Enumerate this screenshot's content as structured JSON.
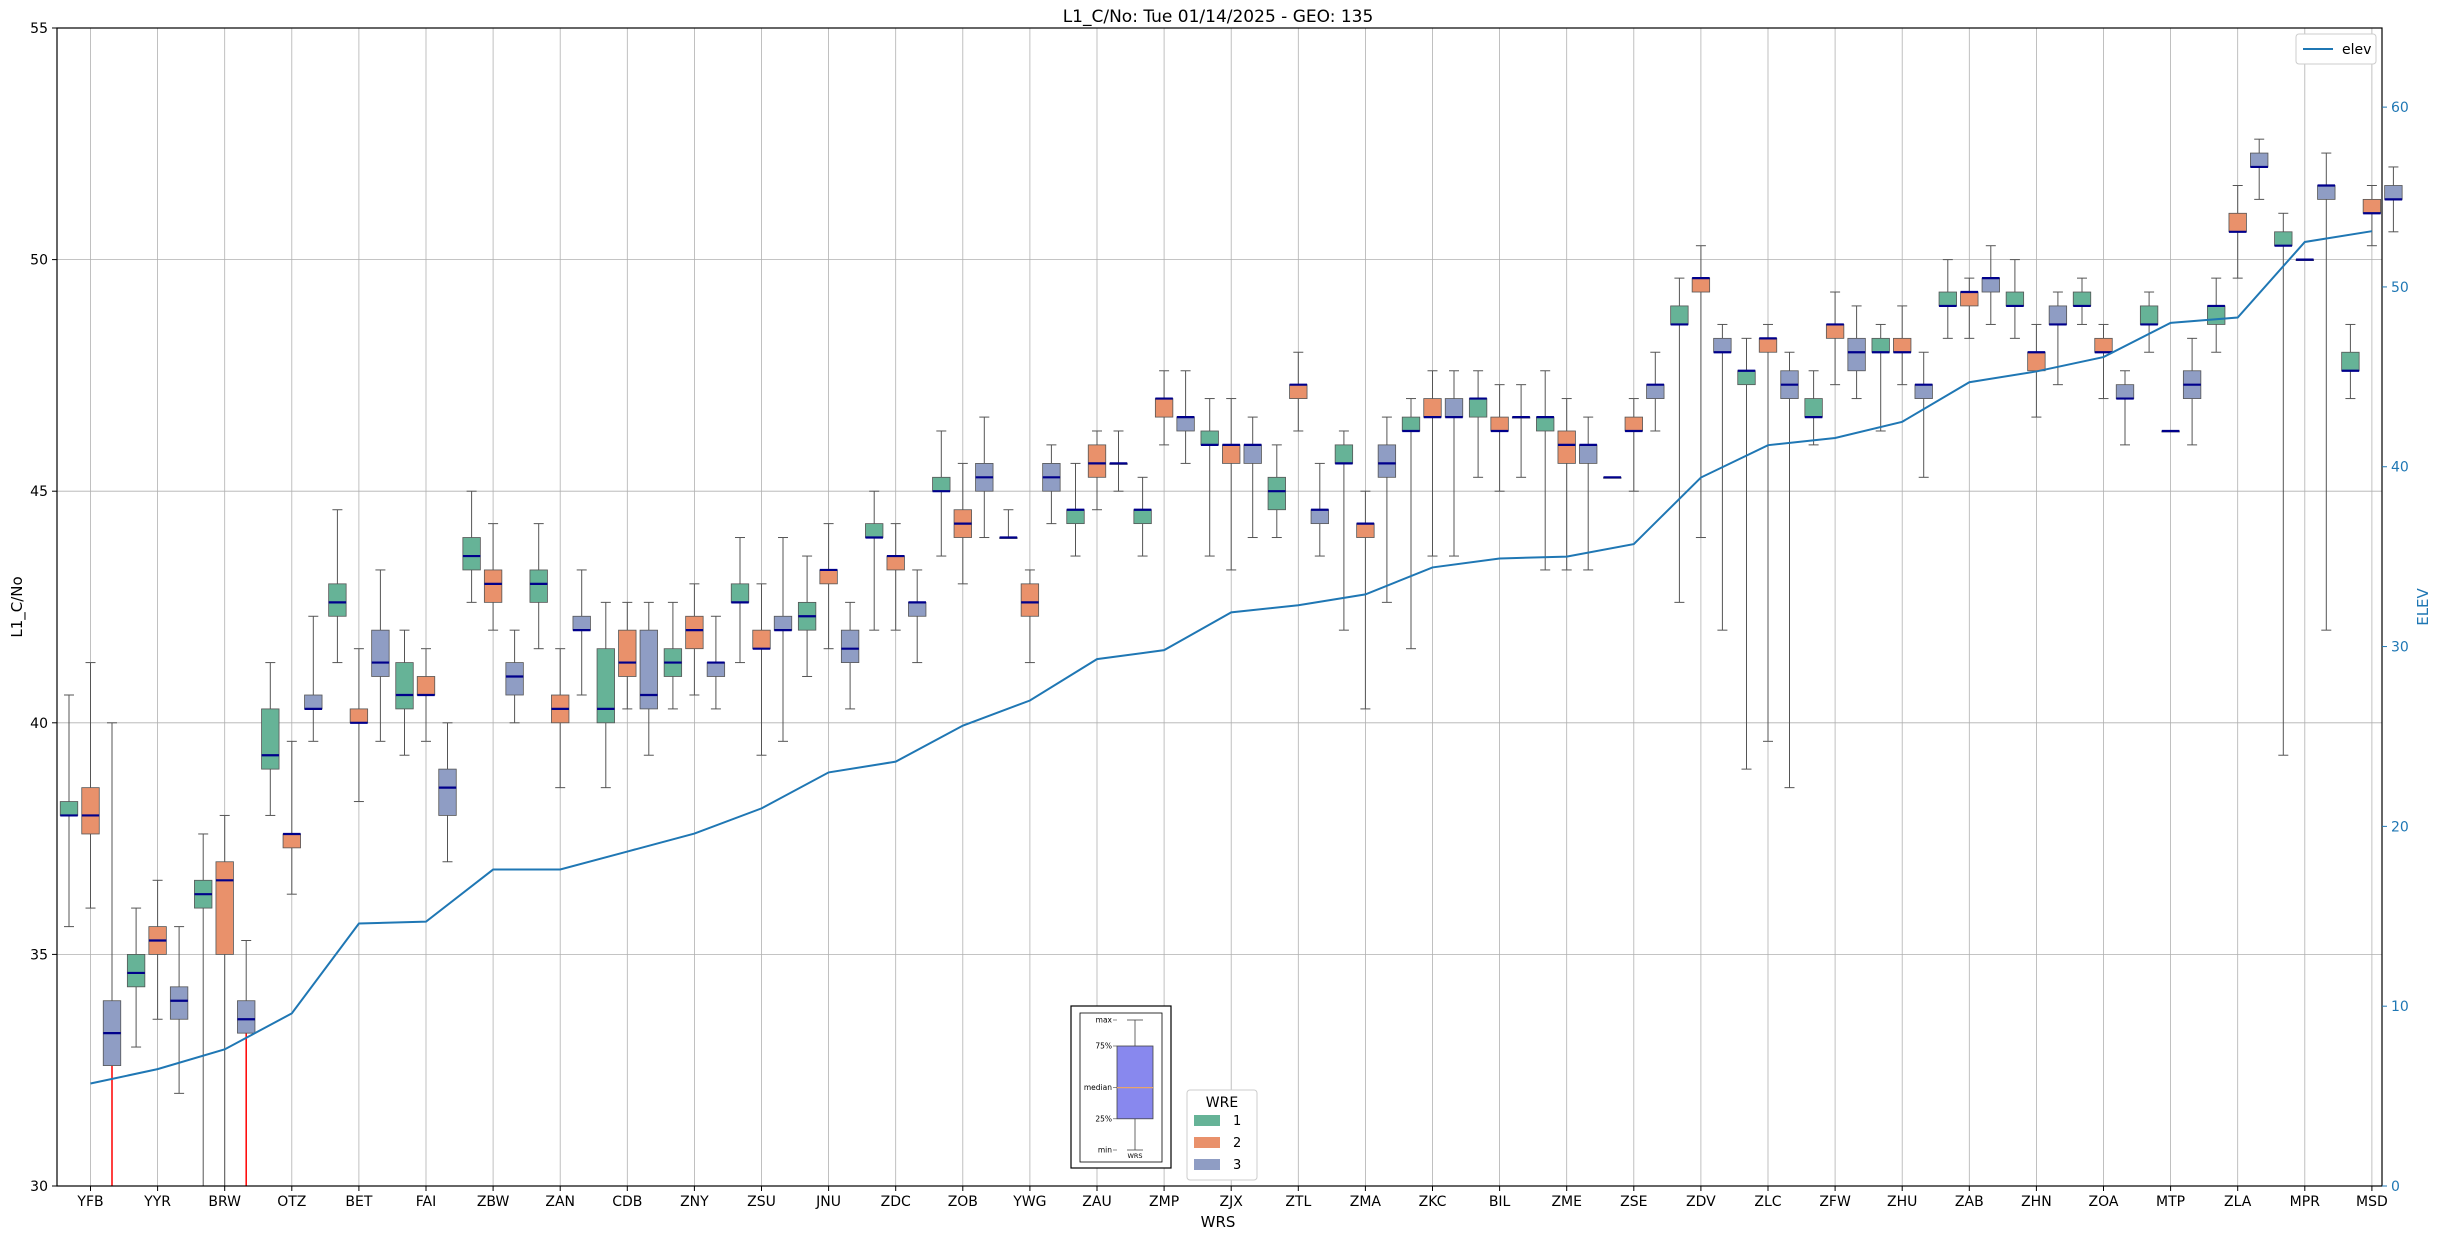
{
  "chart_data": {
    "type": "box",
    "title": "L1_C/No: Tue 01/14/2025 - GEO: 135",
    "xlabel": "WRS",
    "ylabel": "L1_C/No",
    "y2label": "ELEV",
    "ylim": [
      30,
      55
    ],
    "y2lim": [
      0,
      64.4
    ],
    "yticks": [
      30,
      35,
      40,
      45,
      50,
      55
    ],
    "y2ticks": [
      0,
      10,
      20,
      30,
      40,
      50,
      60
    ],
    "grid": true,
    "categories": [
      "YFB",
      "YYR",
      "BRW",
      "OTZ",
      "BET",
      "FAI",
      "ZBW",
      "ZAN",
      "CDB",
      "ZNY",
      "ZSU",
      "JNU",
      "ZDC",
      "ZOB",
      "YWG",
      "ZAU",
      "ZMP",
      "ZJX",
      "ZTL",
      "ZMA",
      "ZKC",
      "BIL",
      "ZME",
      "ZSE",
      "ZDV",
      "ZLC",
      "ZFW",
      "ZHU",
      "ZAB",
      "ZHN",
      "ZOA",
      "MTP",
      "ZLA",
      "MPR",
      "MSD"
    ],
    "legend": {
      "title": "WRE",
      "placement": "bottom-center",
      "entries": [
        "1",
        "2",
        "3"
      ]
    },
    "colors": {
      "wre1": "#66b397",
      "wre2": "#e9916b",
      "wre3": "#8f9dc4",
      "median": "#00008b",
      "whisker": "#555555",
      "elev": "#1f77b4",
      "outlier": "#ff0000"
    },
    "elev_series": {
      "name": "elev",
      "values": [
        5.7,
        6.5,
        7.6,
        9.6,
        14.6,
        14.7,
        17.6,
        17.6,
        18.6,
        19.6,
        21.0,
        23.0,
        23.6,
        25.6,
        27.0,
        29.3,
        29.8,
        31.9,
        32.3,
        32.9,
        34.4,
        34.9,
        35.0,
        35.7,
        39.4,
        41.2,
        41.6,
        42.5,
        44.7,
        45.3,
        46.1,
        48.0,
        48.3,
        52.5,
        53.1
      ]
    },
    "boxes": [
      {
        "cat": "YFB",
        "wre": 1,
        "min": 35.6,
        "q1": 38.0,
        "med": 38.0,
        "q3": 38.3,
        "max": 40.6
      },
      {
        "cat": "YFB",
        "wre": 2,
        "min": 36.0,
        "q1": 37.6,
        "med": 38.0,
        "q3": 38.6,
        "max": 41.3
      },
      {
        "cat": "YFB",
        "wre": 3,
        "min": 30.0,
        "q1": 32.6,
        "med": 33.3,
        "q3": 34.0,
        "max": 40.0,
        "outlier": true
      },
      {
        "cat": "YYR",
        "wre": 1,
        "min": 33.0,
        "q1": 34.3,
        "med": 34.6,
        "q3": 35.0,
        "max": 36.0
      },
      {
        "cat": "YYR",
        "wre": 2,
        "min": 33.6,
        "q1": 35.0,
        "med": 35.3,
        "q3": 35.6,
        "max": 36.6
      },
      {
        "cat": "YYR",
        "wre": 3,
        "min": 32.0,
        "q1": 33.6,
        "med": 34.0,
        "q3": 34.3,
        "max": 35.6
      },
      {
        "cat": "BRW",
        "wre": 1,
        "min": 30.0,
        "q1": 36.0,
        "med": 36.3,
        "q3": 36.6,
        "max": 37.6
      },
      {
        "cat": "BRW",
        "wre": 2,
        "min": 30.0,
        "q1": 35.0,
        "med": 36.6,
        "q3": 37.0,
        "max": 38.0
      },
      {
        "cat": "BRW",
        "wre": 3,
        "min": 30.0,
        "q1": 33.3,
        "med": 33.6,
        "q3": 34.0,
        "max": 35.3,
        "outlier": true
      },
      {
        "cat": "OTZ",
        "wre": 1,
        "min": 38.0,
        "q1": 39.0,
        "med": 39.3,
        "q3": 40.3,
        "max": 41.3
      },
      {
        "cat": "OTZ",
        "wre": 2,
        "min": 36.3,
        "q1": 37.3,
        "med": 37.6,
        "q3": 37.6,
        "max": 39.6
      },
      {
        "cat": "OTZ",
        "wre": 3,
        "min": 39.6,
        "q1": 40.3,
        "med": 40.3,
        "q3": 40.6,
        "max": 42.3
      },
      {
        "cat": "BET",
        "wre": 1,
        "min": 41.3,
        "q1": 42.3,
        "med": 42.6,
        "q3": 43.0,
        "max": 44.6
      },
      {
        "cat": "BET",
        "wre": 2,
        "min": 38.3,
        "q1": 40.0,
        "med": 40.0,
        "q3": 40.3,
        "max": 41.6
      },
      {
        "cat": "BET",
        "wre": 3,
        "min": 39.6,
        "q1": 41.0,
        "med": 41.3,
        "q3": 42.0,
        "max": 43.3
      },
      {
        "cat": "FAI",
        "wre": 1,
        "min": 39.3,
        "q1": 40.3,
        "med": 40.6,
        "q3": 41.3,
        "max": 42.0
      },
      {
        "cat": "FAI",
        "wre": 2,
        "min": 39.6,
        "q1": 40.6,
        "med": 40.6,
        "q3": 41.0,
        "max": 41.6
      },
      {
        "cat": "FAI",
        "wre": 3,
        "min": 37.0,
        "q1": 38.0,
        "med": 38.6,
        "q3": 39.0,
        "max": 40.0
      },
      {
        "cat": "ZBW",
        "wre": 1,
        "min": 42.6,
        "q1": 43.3,
        "med": 43.6,
        "q3": 44.0,
        "max": 45.0
      },
      {
        "cat": "ZBW",
        "wre": 2,
        "min": 42.0,
        "q1": 42.6,
        "med": 43.0,
        "q3": 43.3,
        "max": 44.3
      },
      {
        "cat": "ZBW",
        "wre": 3,
        "min": 40.0,
        "q1": 40.6,
        "med": 41.0,
        "q3": 41.3,
        "max": 42.0
      },
      {
        "cat": "ZAN",
        "wre": 1,
        "min": 41.6,
        "q1": 42.6,
        "med": 43.0,
        "q3": 43.3,
        "max": 44.3
      },
      {
        "cat": "ZAN",
        "wre": 2,
        "min": 38.6,
        "q1": 40.0,
        "med": 40.3,
        "q3": 40.6,
        "max": 41.6
      },
      {
        "cat": "ZAN",
        "wre": 3,
        "min": 40.6,
        "q1": 42.0,
        "med": 42.0,
        "q3": 42.3,
        "max": 43.3
      },
      {
        "cat": "CDB",
        "wre": 1,
        "min": 38.6,
        "q1": 40.0,
        "med": 40.3,
        "q3": 41.6,
        "max": 42.6
      },
      {
        "cat": "CDB",
        "wre": 2,
        "min": 40.3,
        "q1": 41.0,
        "med": 41.3,
        "q3": 42.0,
        "max": 42.6
      },
      {
        "cat": "CDB",
        "wre": 3,
        "min": 39.3,
        "q1": 40.3,
        "med": 40.6,
        "q3": 42.0,
        "max": 42.6
      },
      {
        "cat": "ZNY",
        "wre": 1,
        "min": 40.3,
        "q1": 41.0,
        "med": 41.3,
        "q3": 41.6,
        "max": 42.6
      },
      {
        "cat": "ZNY",
        "wre": 2,
        "min": 40.6,
        "q1": 41.6,
        "med": 42.0,
        "q3": 42.3,
        "max": 43.0
      },
      {
        "cat": "ZNY",
        "wre": 3,
        "min": 40.3,
        "q1": 41.0,
        "med": 41.3,
        "q3": 41.3,
        "max": 42.3
      },
      {
        "cat": "ZSU",
        "wre": 1,
        "min": 41.3,
        "q1": 42.6,
        "med": 42.6,
        "q3": 43.0,
        "max": 44.0
      },
      {
        "cat": "ZSU",
        "wre": 2,
        "min": 39.3,
        "q1": 41.6,
        "med": 41.6,
        "q3": 42.0,
        "max": 43.0
      },
      {
        "cat": "ZSU",
        "wre": 3,
        "min": 39.6,
        "q1": 42.0,
        "med": 42.0,
        "q3": 42.3,
        "max": 44.0
      },
      {
        "cat": "JNU",
        "wre": 1,
        "min": 41.0,
        "q1": 42.0,
        "med": 42.3,
        "q3": 42.6,
        "max": 43.6
      },
      {
        "cat": "JNU",
        "wre": 2,
        "min": 41.6,
        "q1": 43.0,
        "med": 43.3,
        "q3": 43.3,
        "max": 44.3
      },
      {
        "cat": "JNU",
        "wre": 3,
        "min": 40.3,
        "q1": 41.3,
        "med": 41.6,
        "q3": 42.0,
        "max": 42.6
      },
      {
        "cat": "ZDC",
        "wre": 1,
        "min": 42.0,
        "q1": 44.0,
        "med": 44.0,
        "q3": 44.3,
        "max": 45.0
      },
      {
        "cat": "ZDC",
        "wre": 2,
        "min": 42.0,
        "q1": 43.3,
        "med": 43.6,
        "q3": 43.6,
        "max": 44.3
      },
      {
        "cat": "ZDC",
        "wre": 3,
        "min": 41.3,
        "q1": 42.3,
        "med": 42.6,
        "q3": 42.6,
        "max": 43.3
      },
      {
        "cat": "ZOB",
        "wre": 1,
        "min": 43.6,
        "q1": 45.0,
        "med": 45.0,
        "q3": 45.3,
        "max": 46.3
      },
      {
        "cat": "ZOB",
        "wre": 2,
        "min": 43.0,
        "q1": 44.0,
        "med": 44.3,
        "q3": 44.6,
        "max": 45.6
      },
      {
        "cat": "ZOB",
        "wre": 3,
        "min": 44.0,
        "q1": 45.0,
        "med": 45.3,
        "q3": 45.6,
        "max": 46.6
      },
      {
        "cat": "YWG",
        "wre": 1,
        "min": 44.0,
        "q1": 44.0,
        "med": 44.0,
        "q3": 44.0,
        "max": 44.6
      },
      {
        "cat": "YWG",
        "wre": 2,
        "min": 41.3,
        "q1": 42.3,
        "med": 42.6,
        "q3": 43.0,
        "max": 43.3
      },
      {
        "cat": "YWG",
        "wre": 3,
        "min": 44.3,
        "q1": 45.0,
        "med": 45.3,
        "q3": 45.6,
        "max": 46.0
      },
      {
        "cat": "ZAU",
        "wre": 1,
        "min": 43.6,
        "q1": 44.3,
        "med": 44.6,
        "q3": 44.6,
        "max": 45.6
      },
      {
        "cat": "ZAU",
        "wre": 2,
        "min": 44.6,
        "q1": 45.3,
        "med": 45.6,
        "q3": 46.0,
        "max": 46.3
      },
      {
        "cat": "ZAU",
        "wre": 3,
        "min": 45.0,
        "q1": 45.6,
        "med": 45.6,
        "q3": 45.6,
        "max": 46.3
      },
      {
        "cat": "ZMP",
        "wre": 1,
        "min": 43.6,
        "q1": 44.3,
        "med": 44.6,
        "q3": 44.6,
        "max": 45.3
      },
      {
        "cat": "ZMP",
        "wre": 2,
        "min": 46.0,
        "q1": 46.6,
        "med": 47.0,
        "q3": 47.0,
        "max": 47.6
      },
      {
        "cat": "ZMP",
        "wre": 3,
        "min": 45.6,
        "q1": 46.3,
        "med": 46.6,
        "q3": 46.6,
        "max": 47.6
      },
      {
        "cat": "ZJX",
        "wre": 1,
        "min": 43.6,
        "q1": 46.0,
        "med": 46.0,
        "q3": 46.3,
        "max": 47.0
      },
      {
        "cat": "ZJX",
        "wre": 2,
        "min": 43.3,
        "q1": 45.6,
        "med": 46.0,
        "q3": 46.0,
        "max": 47.0
      },
      {
        "cat": "ZJX",
        "wre": 3,
        "min": 44.0,
        "q1": 45.6,
        "med": 46.0,
        "q3": 46.0,
        "max": 46.6
      },
      {
        "cat": "ZTL",
        "wre": 1,
        "min": 44.0,
        "q1": 44.6,
        "med": 45.0,
        "q3": 45.3,
        "max": 46.0
      },
      {
        "cat": "ZTL",
        "wre": 2,
        "min": 46.3,
        "q1": 47.0,
        "med": 47.3,
        "q3": 47.3,
        "max": 48.0
      },
      {
        "cat": "ZTL",
        "wre": 3,
        "min": 43.6,
        "q1": 44.3,
        "med": 44.6,
        "q3": 44.6,
        "max": 45.6
      },
      {
        "cat": "ZMA",
        "wre": 1,
        "min": 42.0,
        "q1": 45.6,
        "med": 45.6,
        "q3": 46.0,
        "max": 46.3
      },
      {
        "cat": "ZMA",
        "wre": 2,
        "min": 40.3,
        "q1": 44.0,
        "med": 44.3,
        "q3": 44.3,
        "max": 45.0
      },
      {
        "cat": "ZMA",
        "wre": 3,
        "min": 42.6,
        "q1": 45.3,
        "med": 45.6,
        "q3": 46.0,
        "max": 46.6
      },
      {
        "cat": "ZKC",
        "wre": 1,
        "min": 41.6,
        "q1": 46.3,
        "med": 46.3,
        "q3": 46.6,
        "max": 47.0
      },
      {
        "cat": "ZKC",
        "wre": 2,
        "min": 43.6,
        "q1": 46.6,
        "med": 46.6,
        "q3": 47.0,
        "max": 47.6
      },
      {
        "cat": "ZKC",
        "wre": 3,
        "min": 43.6,
        "q1": 46.6,
        "med": 46.6,
        "q3": 47.0,
        "max": 47.6
      },
      {
        "cat": "BIL",
        "wre": 1,
        "min": 45.3,
        "q1": 46.6,
        "med": 47.0,
        "q3": 47.0,
        "max": 47.6
      },
      {
        "cat": "BIL",
        "wre": 2,
        "min": 45.0,
        "q1": 46.3,
        "med": 46.3,
        "q3": 46.6,
        "max": 47.3
      },
      {
        "cat": "BIL",
        "wre": 3,
        "min": 45.3,
        "q1": 46.6,
        "med": 46.6,
        "q3": 46.6,
        "max": 47.3
      },
      {
        "cat": "ZME",
        "wre": 1,
        "min": 43.3,
        "q1": 46.3,
        "med": 46.6,
        "q3": 46.6,
        "max": 47.6
      },
      {
        "cat": "ZME",
        "wre": 2,
        "min": 43.3,
        "q1": 45.6,
        "med": 46.0,
        "q3": 46.3,
        "max": 47.0
      },
      {
        "cat": "ZME",
        "wre": 3,
        "min": 43.3,
        "q1": 45.6,
        "med": 46.0,
        "q3": 46.0,
        "max": 46.6
      },
      {
        "cat": "ZSE",
        "wre": 1,
        "min": 45.3,
        "q1": 45.3,
        "med": 45.3,
        "q3": 45.3,
        "max": 45.3
      },
      {
        "cat": "ZSE",
        "wre": 2,
        "min": 45.0,
        "q1": 46.3,
        "med": 46.3,
        "q3": 46.6,
        "max": 47.0
      },
      {
        "cat": "ZSE",
        "wre": 3,
        "min": 46.3,
        "q1": 47.0,
        "med": 47.3,
        "q3": 47.3,
        "max": 48.0
      },
      {
        "cat": "ZDV",
        "wre": 1,
        "min": 42.6,
        "q1": 48.6,
        "med": 48.6,
        "q3": 49.0,
        "max": 49.6
      },
      {
        "cat": "ZDV",
        "wre": 2,
        "min": 44.0,
        "q1": 49.3,
        "med": 49.6,
        "q3": 49.6,
        "max": 50.3
      },
      {
        "cat": "ZDV",
        "wre": 3,
        "min": 42.0,
        "q1": 48.0,
        "med": 48.0,
        "q3": 48.3,
        "max": 48.6
      },
      {
        "cat": "ZLC",
        "wre": 1,
        "min": 39.0,
        "q1": 47.3,
        "med": 47.6,
        "q3": 47.6,
        "max": 48.3
      },
      {
        "cat": "ZLC",
        "wre": 2,
        "min": 39.6,
        "q1": 48.0,
        "med": 48.3,
        "q3": 48.3,
        "max": 48.6
      },
      {
        "cat": "ZLC",
        "wre": 3,
        "min": 38.6,
        "q1": 47.0,
        "med": 47.3,
        "q3": 47.6,
        "max": 48.0
      },
      {
        "cat": "ZFW",
        "wre": 1,
        "min": 46.0,
        "q1": 46.6,
        "med": 46.6,
        "q3": 47.0,
        "max": 47.6
      },
      {
        "cat": "ZFW",
        "wre": 2,
        "min": 47.3,
        "q1": 48.3,
        "med": 48.6,
        "q3": 48.6,
        "max": 49.3
      },
      {
        "cat": "ZFW",
        "wre": 3,
        "min": 47.0,
        "q1": 47.6,
        "med": 48.0,
        "q3": 48.3,
        "max": 49.0
      },
      {
        "cat": "ZHU",
        "wre": 1,
        "min": 46.3,
        "q1": 48.0,
        "med": 48.0,
        "q3": 48.3,
        "max": 48.6
      },
      {
        "cat": "ZHU",
        "wre": 2,
        "min": 47.3,
        "q1": 48.0,
        "med": 48.0,
        "q3": 48.3,
        "max": 49.0
      },
      {
        "cat": "ZHU",
        "wre": 3,
        "min": 45.3,
        "q1": 47.0,
        "med": 47.3,
        "q3": 47.3,
        "max": 48.0
      },
      {
        "cat": "ZAB",
        "wre": 1,
        "min": 48.3,
        "q1": 49.0,
        "med": 49.0,
        "q3": 49.3,
        "max": 50.0
      },
      {
        "cat": "ZAB",
        "wre": 2,
        "min": 48.3,
        "q1": 49.0,
        "med": 49.3,
        "q3": 49.3,
        "max": 49.6
      },
      {
        "cat": "ZAB",
        "wre": 3,
        "min": 48.6,
        "q1": 49.3,
        "med": 49.6,
        "q3": 49.6,
        "max": 50.3
      },
      {
        "cat": "ZHN",
        "wre": 1,
        "min": 48.3,
        "q1": 49.0,
        "med": 49.0,
        "q3": 49.3,
        "max": 50.0
      },
      {
        "cat": "ZHN",
        "wre": 2,
        "min": 46.6,
        "q1": 47.6,
        "med": 48.0,
        "q3": 48.0,
        "max": 48.6
      },
      {
        "cat": "ZHN",
        "wre": 3,
        "min": 47.3,
        "q1": 48.6,
        "med": 48.6,
        "q3": 49.0,
        "max": 49.3
      },
      {
        "cat": "ZOA",
        "wre": 1,
        "min": 48.6,
        "q1": 49.0,
        "med": 49.0,
        "q3": 49.3,
        "max": 49.6
      },
      {
        "cat": "ZOA",
        "wre": 2,
        "min": 47.0,
        "q1": 48.0,
        "med": 48.0,
        "q3": 48.3,
        "max": 48.6
      },
      {
        "cat": "ZOA",
        "wre": 3,
        "min": 46.0,
        "q1": 47.0,
        "med": 47.0,
        "q3": 47.3,
        "max": 47.6
      },
      {
        "cat": "MTP",
        "wre": 1,
        "min": 48.0,
        "q1": 48.6,
        "med": 48.6,
        "q3": 49.0,
        "max": 49.3
      },
      {
        "cat": "MTP",
        "wre": 2,
        "min": 46.3,
        "q1": 46.3,
        "med": 46.3,
        "q3": 46.3,
        "max": 46.3
      },
      {
        "cat": "MTP",
        "wre": 3,
        "min": 46.0,
        "q1": 47.0,
        "med": 47.3,
        "q3": 47.6,
        "max": 48.3
      },
      {
        "cat": "ZLA",
        "wre": 1,
        "min": 48.0,
        "q1": 48.6,
        "med": 49.0,
        "q3": 49.0,
        "max": 49.6
      },
      {
        "cat": "ZLA",
        "wre": 2,
        "min": 49.6,
        "q1": 50.6,
        "med": 50.6,
        "q3": 51.0,
        "max": 51.6
      },
      {
        "cat": "ZLA",
        "wre": 3,
        "min": 51.3,
        "q1": 52.0,
        "med": 52.0,
        "q3": 52.3,
        "max": 52.6
      },
      {
        "cat": "MPR",
        "wre": 1,
        "min": 39.3,
        "q1": 50.3,
        "med": 50.3,
        "q3": 50.6,
        "max": 51.0
      },
      {
        "cat": "MPR",
        "wre": 2,
        "min": 50.0,
        "q1": 50.0,
        "med": 50.0,
        "q3": 50.0,
        "max": 50.0
      },
      {
        "cat": "MPR",
        "wre": 3,
        "min": 42.0,
        "q1": 51.3,
        "med": 51.6,
        "q3": 51.6,
        "max": 52.3
      },
      {
        "cat": "MSD",
        "wre": 1,
        "min": 47.0,
        "q1": 47.6,
        "med": 47.6,
        "q3": 48.0,
        "max": 48.6
      },
      {
        "cat": "MSD",
        "wre": 2,
        "min": 50.3,
        "q1": 51.0,
        "med": 51.0,
        "q3": 51.3,
        "max": 51.6
      },
      {
        "cat": "MSD",
        "wre": 3,
        "min": 50.6,
        "q1": 51.3,
        "med": 51.3,
        "q3": 51.6,
        "max": 52.0
      }
    ],
    "inset": {
      "labels": [
        "max",
        "75%",
        "median",
        "25%",
        "min"
      ],
      "xlabel": "WRS",
      "demo": {
        "min": 0,
        "q1": 30,
        "med": 60,
        "q3": 100,
        "max": 125
      }
    }
  }
}
